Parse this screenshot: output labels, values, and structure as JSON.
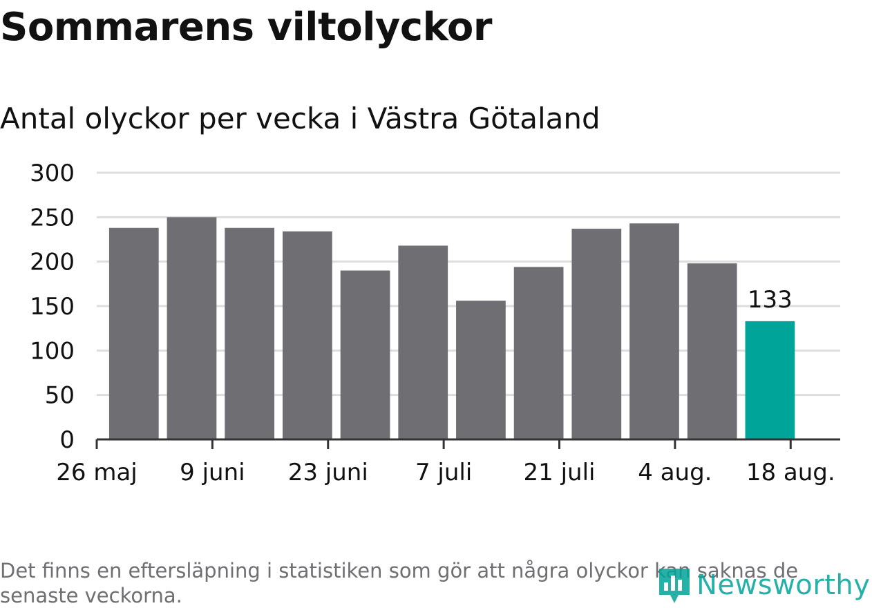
{
  "title": "Sommarens viltolyckor",
  "subtitle": "Antal olyckor per vecka i Västra Götaland",
  "footnote": "Det finns en eftersläpning i statistiken som gör att några olyckor kan saknas de senaste veckorna.",
  "logo": {
    "text": "Newsworthy",
    "icon": "newsworthy-logo-icon"
  },
  "colors": {
    "bar": "#6f6e73",
    "highlight": "#00a499",
    "grid": "#dddddd",
    "axis": "#333333",
    "text": "#111111",
    "footnote": "#6f6e73"
  },
  "chart_data": {
    "type": "bar",
    "x": [
      "2019-06-03",
      "2019-06-10",
      "2019-06-17",
      "2019-06-24",
      "2019-07-01",
      "2019-07-08",
      "2019-07-15",
      "2019-07-22",
      "2019-07-29",
      "2019-08-05",
      "2019-08-12",
      "2019-08-19"
    ],
    "values": [
      238,
      250,
      238,
      234,
      190,
      218,
      156,
      194,
      237,
      243,
      198,
      133
    ],
    "highlight_index": 11,
    "data_labels": [
      {
        "index": 11,
        "text": "133"
      }
    ],
    "xticks": [
      {
        "x": "2019-05-26",
        "label": "26 maj"
      },
      {
        "x": "2019-06-09",
        "label": "9 juni"
      },
      {
        "x": "2019-06-23",
        "label": "23 juni"
      },
      {
        "x": "2019-07-07",
        "label": "7 juli"
      },
      {
        "x": "2019-07-21",
        "label": "21 juli"
      },
      {
        "x": "2019-08-04",
        "label": "4 aug."
      },
      {
        "x": "2019-08-18",
        "label": "18 aug."
      }
    ],
    "yticks": [
      0,
      50,
      100,
      150,
      200,
      250,
      300
    ],
    "ylim": [
      0,
      300
    ],
    "xlim": [
      "2019-05-26",
      "2019-08-24"
    ],
    "grid": true,
    "legend": false
  }
}
